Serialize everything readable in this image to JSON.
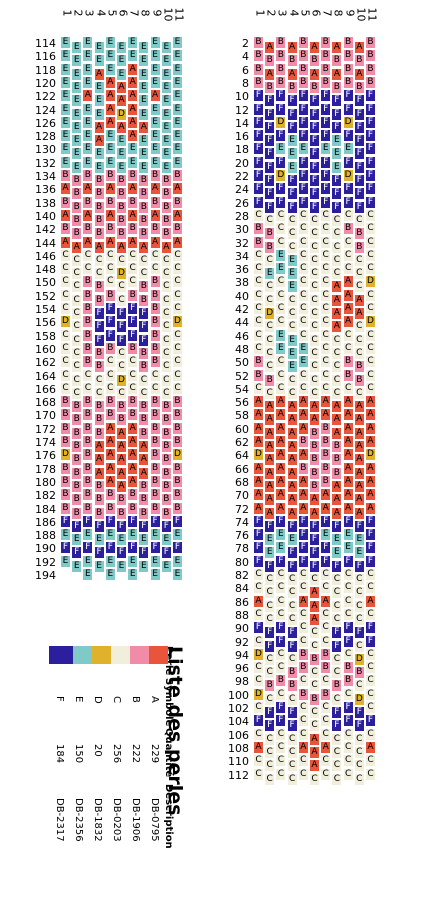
{
  "palette": {
    "A": {
      "color": "#e8553a",
      "text": "#000000"
    },
    "B": {
      "color": "#f08ca8",
      "text": "#000000"
    },
    "C": {
      "color": "#f2eedc",
      "text": "#000000"
    },
    "D": {
      "color": "#e0b12a",
      "text": "#000000"
    },
    "E": {
      "color": "#7fcac9",
      "text": "#000000"
    },
    "F": {
      "color": "#2b1f9e",
      "text": "#ffffff"
    }
  },
  "column_numbers": [
    "1",
    "2",
    "3",
    "4",
    "5",
    "6",
    "7",
    "8",
    "9",
    "10",
    "11"
  ],
  "left_panel": {
    "row_labels": [
      "114",
      "116",
      "118",
      "120",
      "122",
      "124",
      "126",
      "128",
      "130",
      "132",
      "134",
      "136",
      "138",
      "140",
      "142",
      "144",
      "146",
      "148",
      "150",
      "152",
      "154",
      "156",
      "158",
      "160",
      "162",
      "164",
      "166",
      "168",
      "170",
      "172",
      "174",
      "176",
      "178",
      "180",
      "182",
      "184",
      "186",
      "188",
      "190",
      "192",
      "194"
    ],
    "rows": [
      "EEEEEEEEEEE",
      "EEEEEEEEEEE",
      "EEEAEEAEEEE",
      "EEEEAAAEEEE",
      "EEAEAAAEAEE",
      "EEEEADAEEEE",
      "EEEAAAAAEEE",
      "EEEAEEAEEEE",
      "EEEEEEEEEEE",
      "EEEEEEEEEEE",
      "BBBBBBBBBBB",
      "ABABABABABA",
      "BBBBBBBBBBB",
      "ABABABABABA",
      "BBBBBBBBBBB",
      "AAAAAAAAAAA",
      "CCCCCCCCCCC",
      "CCCCCDCCCCC",
      "CCBBCCCBBCC",
      "CCBBBCBBBCC",
      "CCBFFFFFBCC",
      "DCBFFFFFBCD",
      "CCBFFFFFBCC",
      "CCBBBCBBBCC",
      "CCBBCCCBBCC",
      "CCCCCDCCCCC",
      "CCCCCCCCCCC",
      "BBBBBBBBBBB",
      "BBBBBBBBBBB",
      "BBBBAAABBBB",
      "BBBAAAAABBB",
      "DBBAAAAABBD",
      "BBBAAAAABBB",
      "BBBBAAABBBB",
      "BBBBBBBBBBB",
      "BBBBBBBBBBB",
      "FFFFFFFFFFF",
      "EEEEEEEEEEE",
      "FFFFFFFFFFF",
      "EEEEEEEEEEE",
      "  E E E E E"
    ]
  },
  "right_panel": {
    "row_labels": [
      "2",
      "4",
      "6",
      "8",
      "10",
      "12",
      "14",
      "16",
      "18",
      "20",
      "22",
      "24",
      "26",
      "28",
      "30",
      "32",
      "34",
      "36",
      "38",
      "40",
      "42",
      "44",
      "46",
      "48",
      "50",
      "52",
      "54",
      "56",
      "58",
      "60",
      "62",
      "64",
      "66",
      "68",
      "70",
      "72",
      "74",
      "76",
      "78",
      "80",
      "82",
      "84",
      "86",
      "88",
      "90",
      "92",
      "94",
      "96",
      "98",
      "100",
      "102",
      "104",
      "106",
      "108",
      "110",
      "112"
    ],
    "rows": [
      "BABABABABAB",
      "BBBBBBBBBBB",
      "BABABABABAB",
      "BBBBBBBBBBB",
      "FFFFFFFFFFF",
      "FFFFFFFFFFF",
      "FFDFFFFFDFF",
      "FFFEFFFEFFF",
      "FFEEEFEEEFF",
      "FFFEFFFEFFF",
      "FFDFFFFFDFF",
      "FFFFFFFFFFF",
      "FFFFFFFFFFF",
      "CCCCCCCCCCC",
      "BBCCCCCCBBC",
      "BBCCCCCCCBC",
      "CCEECCCCCCC",
      "CEEECCCCCCC",
      "CCCECCCAACD",
      "CCCCCCCAAAC",
      "CDCCCCCAAAC",
      "CCCCCCCAACD",
      "CCEECCCCCCC",
      "CCEEECCCCCC",
      "BCCEECCCBBC",
      "BBCCCCCCBBC",
      "CCCCCCCCCCC",
      "AAAAAAAAAAA",
      "AAAAAAAAAAA",
      "AAAAABBAAAA",
      "AAAABBBBAAA",
      "DAAAABBBAAD",
      "AAAABBBBAAA",
      "AAAAABBAAAA",
      "AAAAAAAAAAA",
      "AAAAAAAAAAA",
      "FFFFFFFFFFF",
      "FEEEFFEEEEF",
      "FEEFFFFEEEF",
      "FFFFFFFFFFF",
      "CCCCCCCCCCC",
      "CCCCCACCCCC",
      "ACCCAAACCCA",
      "CCCCCACCCCC",
      "FFFFCCCFFFF",
      "CFFFCCCFFCF",
      "DCCCBBBCCDC",
      "CCCBBCBCBBC",
      "CBBBCCCBBCC",
      "DCCCBBBCCDC",
      "CFFFCCCFFFC",
      "FFFFCCCFFFF",
      "CCCCCACCCCC",
      "ACCCAAACCCA",
      "CCCCCACCCCC",
      "CCCCCCCCCCC"
    ]
  },
  "legend": {
    "title": "Liste des perles",
    "headers": {
      "color": "Perle",
      "symbol": "Symbole",
      "quantity": "Quantité",
      "description": "Description"
    },
    "items": [
      {
        "symbol": "A",
        "quantity": "229",
        "description": "DB-0795",
        "color": "#e8553a"
      },
      {
        "symbol": "B",
        "quantity": "222",
        "description": "DB-1906",
        "color": "#f08ca8"
      },
      {
        "symbol": "C",
        "quantity": "256",
        "description": "DB-0203",
        "color": "#f2eedc"
      },
      {
        "symbol": "D",
        "quantity": "20",
        "description": "DB-1832",
        "color": "#e0b12a"
      },
      {
        "symbol": "E",
        "quantity": "150",
        "description": "DB-2356",
        "color": "#7fcac9"
      },
      {
        "symbol": "F",
        "quantity": "184",
        "description": "DB-2317",
        "color": "#2b1f9e"
      }
    ]
  }
}
